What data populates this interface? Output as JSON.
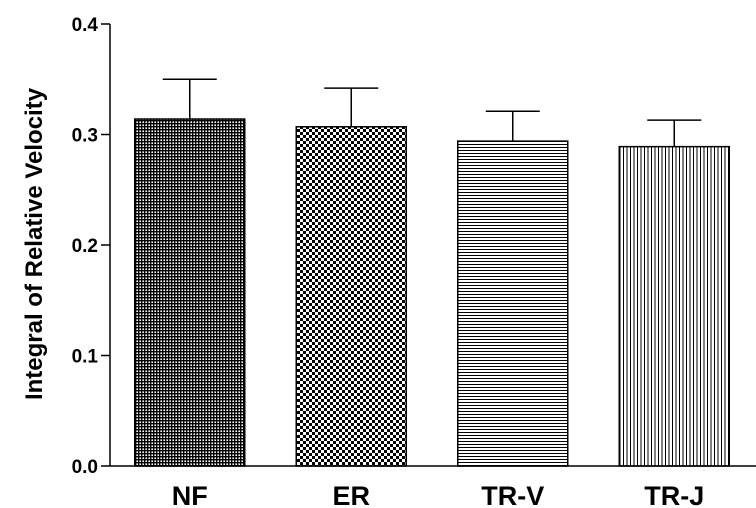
{
  "chart_data": {
    "type": "bar",
    "title": "",
    "xlabel": "",
    "ylabel": "Integral of Relative Velocity",
    "categories": [
      "NF",
      "ER",
      "TR-V",
      "TR-J"
    ],
    "values": [
      0.314,
      0.307,
      0.294,
      0.289
    ],
    "error_upper": [
      0.35,
      0.342,
      0.321,
      0.313
    ],
    "ylim": [
      0.0,
      0.4
    ],
    "yticks": [
      "0.0",
      "0.1",
      "0.2",
      "0.3",
      "0.4"
    ],
    "patterns": [
      "dense-crosshatch",
      "checkerboard",
      "horizontal-lines",
      "vertical-lines"
    ],
    "grid": false,
    "legend": "none",
    "bar_edge_color": "#000000",
    "bar_fill_color": "#000000"
  }
}
